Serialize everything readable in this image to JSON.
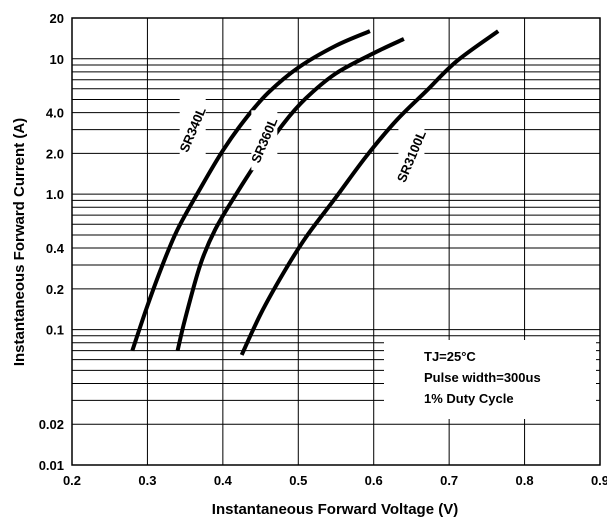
{
  "chart_data": {
    "type": "line",
    "xlabel": "Instantaneous Forward Voltage (V)",
    "ylabel": "Instantaneous Forward Current (A)",
    "x_scale": "linear",
    "y_scale": "log",
    "xlim": [
      0.2,
      0.9
    ],
    "ylim": [
      0.01,
      20
    ],
    "x_ticks": [
      0.2,
      0.3,
      0.4,
      0.5,
      0.6,
      0.7,
      0.8,
      0.9
    ],
    "x_tick_labels": [
      "0.2",
      "0.3",
      "0.4",
      "0.5",
      "0.6",
      "0.7",
      "0.8",
      "0.9"
    ],
    "y_ticks": [
      0.01,
      0.02,
      0.1,
      0.2,
      0.4,
      1.0,
      2.0,
      4.0,
      10,
      20
    ],
    "y_tick_labels": [
      "0.01",
      "0.02",
      "0.1",
      "0.2",
      "0.4",
      "1.0",
      "2.0",
      "4.0",
      "10",
      "20"
    ],
    "y_gridlines": [
      0.01,
      0.02,
      0.03,
      0.04,
      0.05,
      0.06,
      0.07,
      0.08,
      0.09,
      0.1,
      0.2,
      0.3,
      0.4,
      0.5,
      0.6,
      0.7,
      0.8,
      0.9,
      1,
      2,
      3,
      4,
      5,
      6,
      7,
      8,
      9,
      10,
      20
    ],
    "grid": true,
    "annotations": [
      "TJ=25°C",
      "Pulse width=300us",
      "1% Duty Cycle"
    ],
    "series": [
      {
        "name": "SR340L",
        "x": [
          0.28,
          0.3,
          0.32,
          0.34,
          0.37,
          0.4,
          0.43,
          0.46,
          0.5,
          0.55,
          0.595
        ],
        "y": [
          0.07,
          0.15,
          0.3,
          0.55,
          1.1,
          2.1,
          3.6,
          5.6,
          8.6,
          12.5,
          16
        ]
      },
      {
        "name": "SR360L",
        "x": [
          0.34,
          0.35,
          0.37,
          0.39,
          0.42,
          0.45,
          0.48,
          0.51,
          0.55,
          0.6,
          0.64
        ],
        "y": [
          0.07,
          0.12,
          0.3,
          0.55,
          1.05,
          1.9,
          3.3,
          5.1,
          7.8,
          11,
          14
        ]
      },
      {
        "name": "SR3100L",
        "x": [
          0.425,
          0.45,
          0.48,
          0.51,
          0.55,
          0.59,
          0.63,
          0.67,
          0.71,
          0.765
        ],
        "y": [
          0.065,
          0.13,
          0.26,
          0.48,
          0.95,
          1.9,
          3.5,
          5.8,
          9.6,
          16
        ]
      }
    ]
  }
}
